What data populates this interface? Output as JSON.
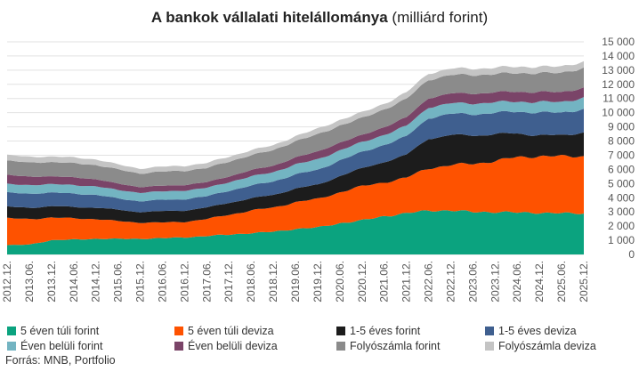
{
  "chart_data": {
    "type": "area",
    "stacked": true,
    "title_bold": "A bankok vállalati hitelállománya",
    "title_rest": "(milliárd forint)",
    "source": "Forrás: MNB, Portfolio",
    "ylim": [
      0,
      15000
    ],
    "y_ticks": [
      "0",
      "1 000",
      "2 000",
      "3 000",
      "4 000",
      "5 000",
      "6 000",
      "7 000",
      "8 000",
      "9 000",
      "10 000",
      "11 000",
      "12 000",
      "13 000",
      "14 000",
      "15 000"
    ],
    "x_labels": [
      "2012.12.",
      "2013.06.",
      "2013.12.",
      "2014.06.",
      "2014.12.",
      "2015.06.",
      "2015.12.",
      "2016.06.",
      "2016.12.",
      "2017.06.",
      "2017.12.",
      "2018.06.",
      "2018.12.",
      "2019.06.",
      "2019.12.",
      "2020.06.",
      "2020.12.",
      "2021.06.",
      "2021.12.",
      "2022.06.",
      "2022.12.",
      "2023.06.",
      "2023.12.",
      "2024.06.",
      "2024.12.",
      "2025.06.",
      "2025.12."
    ],
    "grid": true,
    "legend_position": "bottom",
    "series": [
      {
        "name": "5 éven túli forint",
        "color": "#0ba37f",
        "values": [
          650,
          700,
          1000,
          1050,
          1100,
          1100,
          1100,
          1150,
          1200,
          1300,
          1400,
          1500,
          1600,
          1800,
          1900,
          2200,
          2400,
          2700,
          2900,
          3100,
          3100,
          3000,
          3000,
          2950,
          2950,
          2900,
          2900
        ]
      },
      {
        "name": "5 éven túli deviza",
        "color": "#fe5200",
        "values": [
          1900,
          1800,
          1600,
          1500,
          1400,
          1250,
          1150,
          1100,
          1100,
          1200,
          1400,
          1600,
          1700,
          1900,
          2000,
          2200,
          2400,
          2400,
          2500,
          3000,
          3200,
          3400,
          3600,
          3900,
          4000,
          4000,
          4050
        ]
      },
      {
        "name": "1-5 éves forint",
        "color": "#1c1c1c",
        "values": [
          800,
          800,
          800,
          800,
          800,
          800,
          750,
          800,
          800,
          800,
          850,
          850,
          900,
          950,
          1000,
          1150,
          1250,
          1450,
          1600,
          2100,
          2100,
          2000,
          1900,
          1650,
          1500,
          1450,
          1700
        ]
      },
      {
        "name": "1-5 éves deviza",
        "color": "#3f5f8f",
        "values": [
          1000,
          1000,
          950,
          950,
          900,
          800,
          750,
          800,
          800,
          800,
          850,
          900,
          950,
          1000,
          1050,
          1100,
          1150,
          1200,
          1300,
          1450,
          1500,
          1500,
          1500,
          1550,
          1600,
          1600,
          1650
        ]
      },
      {
        "name": "Éven belüli forint",
        "color": "#73b4c2",
        "values": [
          600,
          600,
          600,
          600,
          600,
          600,
          600,
          600,
          600,
          600,
          600,
          650,
          650,
          700,
          750,
          700,
          700,
          700,
          750,
          750,
          750,
          750,
          750,
          700,
          750,
          750,
          800
        ]
      },
      {
        "name": "Éven belüli deviza",
        "color": "#7a4468",
        "values": [
          650,
          600,
          550,
          550,
          500,
          450,
          400,
          400,
          400,
          400,
          400,
          450,
          450,
          500,
          550,
          550,
          500,
          550,
          600,
          650,
          700,
          700,
          700,
          700,
          700,
          700,
          700
        ]
      },
      {
        "name": "Folyószámla forint",
        "color": "#8b8b8b",
        "values": [
          1000,
          1000,
          1000,
          1000,
          1000,
          1000,
          950,
          1000,
          1000,
          1000,
          1050,
          1050,
          1100,
          1150,
          1200,
          1200,
          1200,
          1250,
          1300,
          1300,
          1300,
          1300,
          1300,
          1300,
          1350,
          1350,
          1400
        ]
      },
      {
        "name": "Folyószámla deviza",
        "color": "#c4c4c4",
        "values": [
          400,
          400,
          400,
          400,
          400,
          350,
          350,
          350,
          350,
          350,
          350,
          350,
          350,
          350,
          400,
          400,
          400,
          400,
          450,
          450,
          450,
          450,
          450,
          450,
          450,
          450,
          450
        ]
      }
    ]
  }
}
